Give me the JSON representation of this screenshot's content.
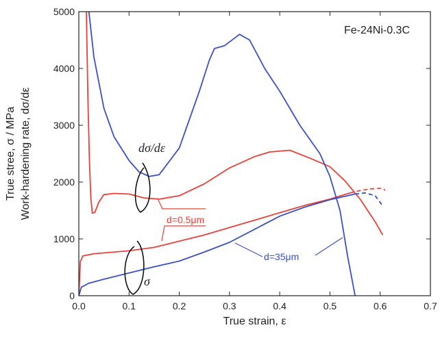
{
  "chart_data": {
    "type": "line",
    "title": "",
    "box_label": "Fe-24Ni-0.3C",
    "xlabel": "True strain, ε",
    "ylabel_line1": "True stree, σ / MPa",
    "ylabel_line2": "Work-hardening rate, dσ/dε",
    "xlim": [
      0.0,
      0.7
    ],
    "ylim": [
      0,
      5000
    ],
    "x_ticks": [
      "0.0",
      "0.1",
      "0.2",
      "0.3",
      "0.4",
      "0.5",
      "0.6",
      "0.7"
    ],
    "y_ticks": [
      "0",
      "1000",
      "2000",
      "3000",
      "4000",
      "5000"
    ],
    "grid": false,
    "colors": {
      "red": "#e8413a",
      "blue": "#3b4fc4",
      "black": "#111111"
    },
    "annotations": {
      "dsde": "dσ/dε",
      "sigma": "σ",
      "d_fine": "d=0.5μm",
      "d_coarse": "d=35μm"
    },
    "series": [
      {
        "color": "red",
        "kind": "stress",
        "points": [
          [
            0.0,
            0
          ],
          [
            0.003,
            600
          ],
          [
            0.008,
            700
          ],
          [
            0.03,
            740
          ],
          [
            0.1,
            790
          ],
          [
            0.15,
            850
          ],
          [
            0.2,
            960
          ],
          [
            0.25,
            1070
          ],
          [
            0.3,
            1200
          ],
          [
            0.35,
            1330
          ],
          [
            0.4,
            1460
          ],
          [
            0.45,
            1590
          ],
          [
            0.5,
            1700
          ],
          [
            0.54,
            1810
          ]
        ]
      },
      {
        "color": "red",
        "kind": "stress-dashed",
        "points": [
          [
            0.54,
            1810
          ],
          [
            0.56,
            1850
          ],
          [
            0.58,
            1880
          ],
          [
            0.6,
            1890
          ],
          [
            0.61,
            1860
          ]
        ]
      },
      {
        "color": "red",
        "kind": "hardening",
        "points": [
          [
            0.015,
            5000
          ],
          [
            0.018,
            3500
          ],
          [
            0.021,
            2400
          ],
          [
            0.024,
            1700
          ],
          [
            0.027,
            1450
          ],
          [
            0.032,
            1470
          ],
          [
            0.04,
            1650
          ],
          [
            0.05,
            1780
          ],
          [
            0.07,
            1800
          ],
          [
            0.1,
            1790
          ],
          [
            0.13,
            1720
          ],
          [
            0.16,
            1700
          ],
          [
            0.2,
            1760
          ],
          [
            0.25,
            1970
          ],
          [
            0.3,
            2250
          ],
          [
            0.35,
            2450
          ],
          [
            0.38,
            2530
          ],
          [
            0.42,
            2560
          ],
          [
            0.46,
            2420
          ],
          [
            0.5,
            2270
          ],
          [
            0.53,
            2020
          ],
          [
            0.56,
            1700
          ],
          [
            0.59,
            1300
          ],
          [
            0.605,
            1070
          ]
        ]
      },
      {
        "color": "blue",
        "kind": "stress",
        "points": [
          [
            0.0,
            0
          ],
          [
            0.005,
            150
          ],
          [
            0.02,
            220
          ],
          [
            0.05,
            290
          ],
          [
            0.1,
            400
          ],
          [
            0.15,
            510
          ],
          [
            0.2,
            610
          ],
          [
            0.25,
            770
          ],
          [
            0.3,
            940
          ],
          [
            0.35,
            1170
          ],
          [
            0.4,
            1400
          ],
          [
            0.45,
            1560
          ],
          [
            0.5,
            1690
          ],
          [
            0.55,
            1790
          ]
        ]
      },
      {
        "color": "blue",
        "kind": "stress-dashed",
        "points": [
          [
            0.55,
            1790
          ],
          [
            0.57,
            1810
          ],
          [
            0.59,
            1760
          ],
          [
            0.605,
            1580
          ]
        ]
      },
      {
        "color": "blue",
        "kind": "hardening",
        "points": [
          [
            0.02,
            5000
          ],
          [
            0.03,
            4200
          ],
          [
            0.05,
            3300
          ],
          [
            0.07,
            2800
          ],
          [
            0.1,
            2380
          ],
          [
            0.12,
            2180
          ],
          [
            0.14,
            2100
          ],
          [
            0.16,
            2130
          ],
          [
            0.2,
            2600
          ],
          [
            0.24,
            3600
          ],
          [
            0.26,
            4150
          ],
          [
            0.27,
            4350
          ],
          [
            0.29,
            4400
          ],
          [
            0.32,
            4600
          ],
          [
            0.34,
            4500
          ],
          [
            0.37,
            4000
          ],
          [
            0.4,
            3600
          ],
          [
            0.44,
            3000
          ],
          [
            0.48,
            2500
          ],
          [
            0.5,
            2100
          ],
          [
            0.52,
            1500
          ],
          [
            0.535,
            700
          ],
          [
            0.55,
            0
          ]
        ]
      }
    ]
  }
}
